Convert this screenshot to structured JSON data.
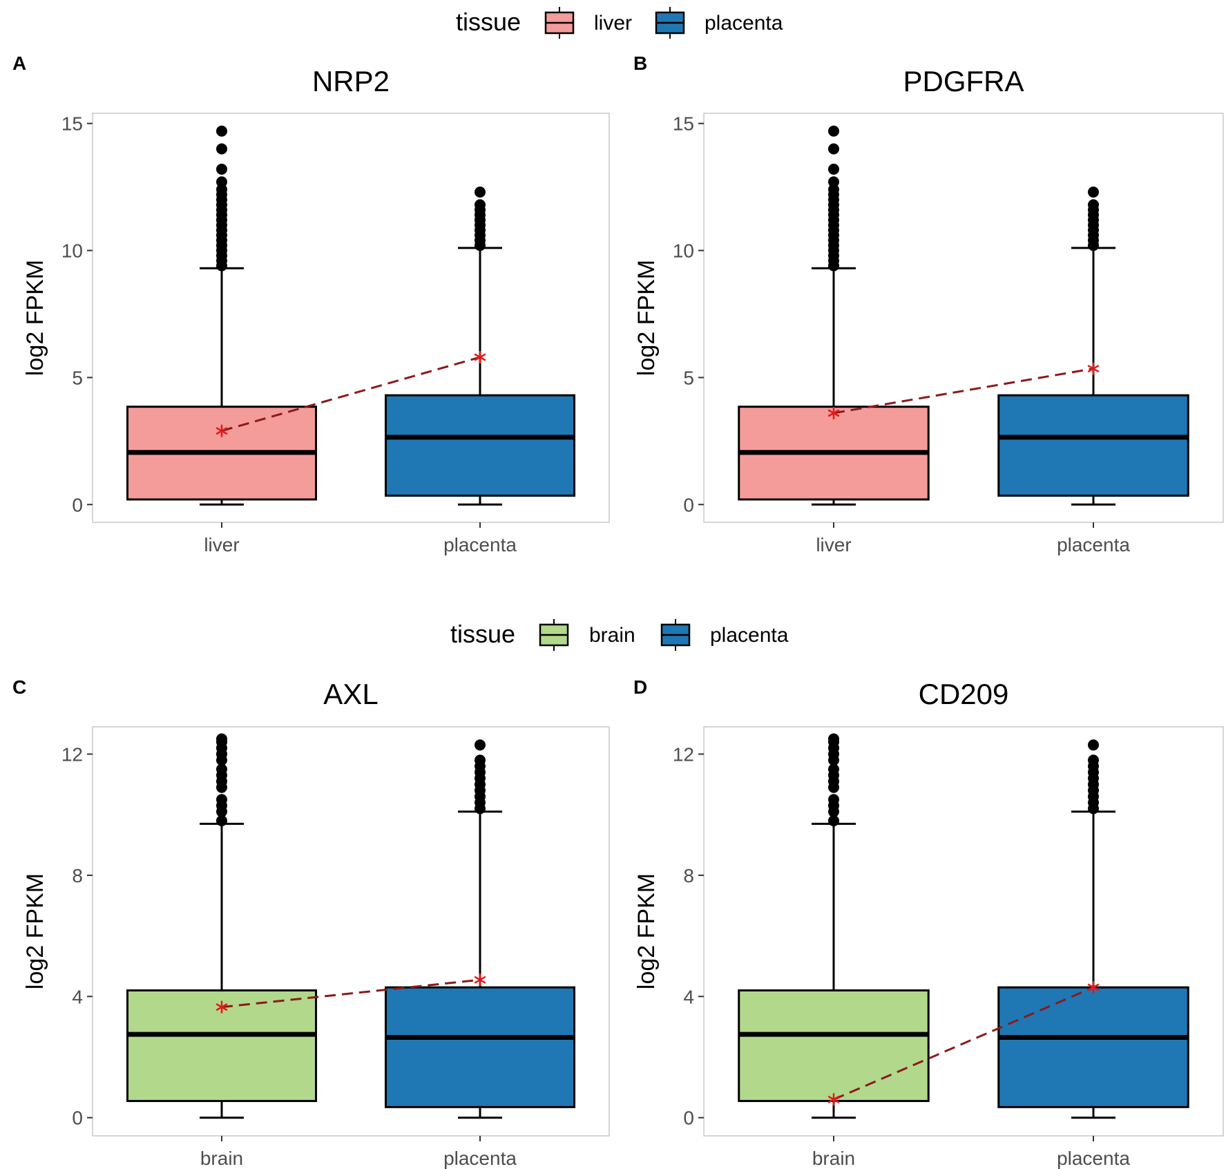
{
  "colors": {
    "liver": "#f49c9a",
    "placenta": "#1f78b4",
    "brain": "#b2d88c",
    "mean_line": "#8b1a1a",
    "mean_marker": "#e31a1c",
    "frame": "#c8c8c8",
    "outlier": "#000000"
  },
  "legends": [
    {
      "title": "tissue",
      "items": [
        {
          "label": "liver",
          "color_key": "liver"
        },
        {
          "label": "placenta",
          "color_key": "placenta"
        }
      ]
    },
    {
      "title": "tissue",
      "items": [
        {
          "label": "brain",
          "color_key": "brain"
        },
        {
          "label": "placenta",
          "color_key": "placenta"
        }
      ]
    }
  ],
  "chart_data": [
    {
      "panel": "A",
      "title": "NRP2",
      "type": "box",
      "ylabel": "log2 FPKM",
      "ylim": [
        -0.7,
        15.4
      ],
      "yticks": [
        0,
        5,
        10,
        15
      ],
      "categories": [
        "liver",
        "placenta"
      ],
      "boxes": [
        {
          "category": "liver",
          "color_key": "liver",
          "min": 0,
          "q1": 0.2,
          "median": 2.05,
          "q3": 3.85,
          "whisker_high": 9.3,
          "outliers": [
            9.4,
            9.6,
            9.8,
            10.0,
            10.2,
            10.4,
            10.6,
            10.8,
            11.0,
            11.2,
            11.4,
            11.6,
            11.8,
            12.0,
            12.2,
            12.4,
            12.7,
            13.2,
            14.0,
            14.7
          ]
        },
        {
          "category": "placenta",
          "color_key": "placenta",
          "min": 0,
          "q1": 0.35,
          "median": 2.65,
          "q3": 4.3,
          "whisker_high": 10.1,
          "outliers": [
            10.2,
            10.4,
            10.6,
            10.8,
            11.0,
            11.2,
            11.4,
            11.6,
            11.8,
            12.3
          ]
        }
      ],
      "mean_points": [
        {
          "category": "liver",
          "value": 2.9
        },
        {
          "category": "placenta",
          "value": 5.8
        }
      ]
    },
    {
      "panel": "B",
      "title": "PDGFRA",
      "type": "box",
      "ylabel": "log2 FPKM",
      "ylim": [
        -0.7,
        15.4
      ],
      "yticks": [
        0,
        5,
        10,
        15
      ],
      "categories": [
        "liver",
        "placenta"
      ],
      "boxes": [
        {
          "category": "liver",
          "color_key": "liver",
          "min": 0,
          "q1": 0.2,
          "median": 2.05,
          "q3": 3.85,
          "whisker_high": 9.3,
          "outliers": [
            9.4,
            9.6,
            9.8,
            10.0,
            10.2,
            10.4,
            10.6,
            10.8,
            11.0,
            11.2,
            11.4,
            11.6,
            11.8,
            12.0,
            12.2,
            12.4,
            12.7,
            13.2,
            14.0,
            14.7
          ]
        },
        {
          "category": "placenta",
          "color_key": "placenta",
          "min": 0,
          "q1": 0.35,
          "median": 2.65,
          "q3": 4.3,
          "whisker_high": 10.1,
          "outliers": [
            10.2,
            10.4,
            10.6,
            10.8,
            11.0,
            11.2,
            11.4,
            11.6,
            11.8,
            12.3
          ]
        }
      ],
      "mean_points": [
        {
          "category": "liver",
          "value": 3.6
        },
        {
          "category": "placenta",
          "value": 5.35
        }
      ]
    },
    {
      "panel": "C",
      "title": "AXL",
      "type": "box",
      "ylabel": "log2 FPKM",
      "ylim": [
        -0.6,
        12.9
      ],
      "yticks": [
        0,
        4,
        8,
        12
      ],
      "categories": [
        "brain",
        "placenta"
      ],
      "boxes": [
        {
          "category": "brain",
          "color_key": "brain",
          "min": 0,
          "q1": 0.55,
          "median": 2.75,
          "q3": 4.2,
          "whisker_high": 9.7,
          "outliers": [
            9.8,
            10.1,
            10.3,
            10.5,
            10.9,
            11.1,
            11.3,
            11.5,
            11.8,
            12.0,
            12.2,
            12.4,
            12.5
          ]
        },
        {
          "category": "placenta",
          "color_key": "placenta",
          "min": 0,
          "q1": 0.35,
          "median": 2.65,
          "q3": 4.3,
          "whisker_high": 10.1,
          "outliers": [
            10.2,
            10.4,
            10.6,
            10.8,
            11.0,
            11.2,
            11.4,
            11.6,
            11.8,
            12.3
          ]
        }
      ],
      "mean_points": [
        {
          "category": "brain",
          "value": 3.65
        },
        {
          "category": "placenta",
          "value": 4.55
        }
      ]
    },
    {
      "panel": "D",
      "title": "CD209",
      "type": "box",
      "ylabel": "log2 FPKM",
      "ylim": [
        -0.6,
        12.9
      ],
      "yticks": [
        0,
        4,
        8,
        12
      ],
      "categories": [
        "brain",
        "placenta"
      ],
      "boxes": [
        {
          "category": "brain",
          "color_key": "brain",
          "min": 0,
          "q1": 0.55,
          "median": 2.75,
          "q3": 4.2,
          "whisker_high": 9.7,
          "outliers": [
            9.8,
            10.1,
            10.3,
            10.5,
            10.9,
            11.1,
            11.3,
            11.5,
            11.8,
            12.0,
            12.2,
            12.4,
            12.5
          ]
        },
        {
          "category": "placenta",
          "color_key": "placenta",
          "min": 0,
          "q1": 0.35,
          "median": 2.65,
          "q3": 4.3,
          "whisker_high": 10.1,
          "outliers": [
            10.2,
            10.4,
            10.6,
            10.8,
            11.0,
            11.2,
            11.4,
            11.6,
            11.8,
            12.3
          ]
        }
      ],
      "mean_points": [
        {
          "category": "brain",
          "value": 0.6
        },
        {
          "category": "placenta",
          "value": 4.3
        }
      ]
    }
  ]
}
